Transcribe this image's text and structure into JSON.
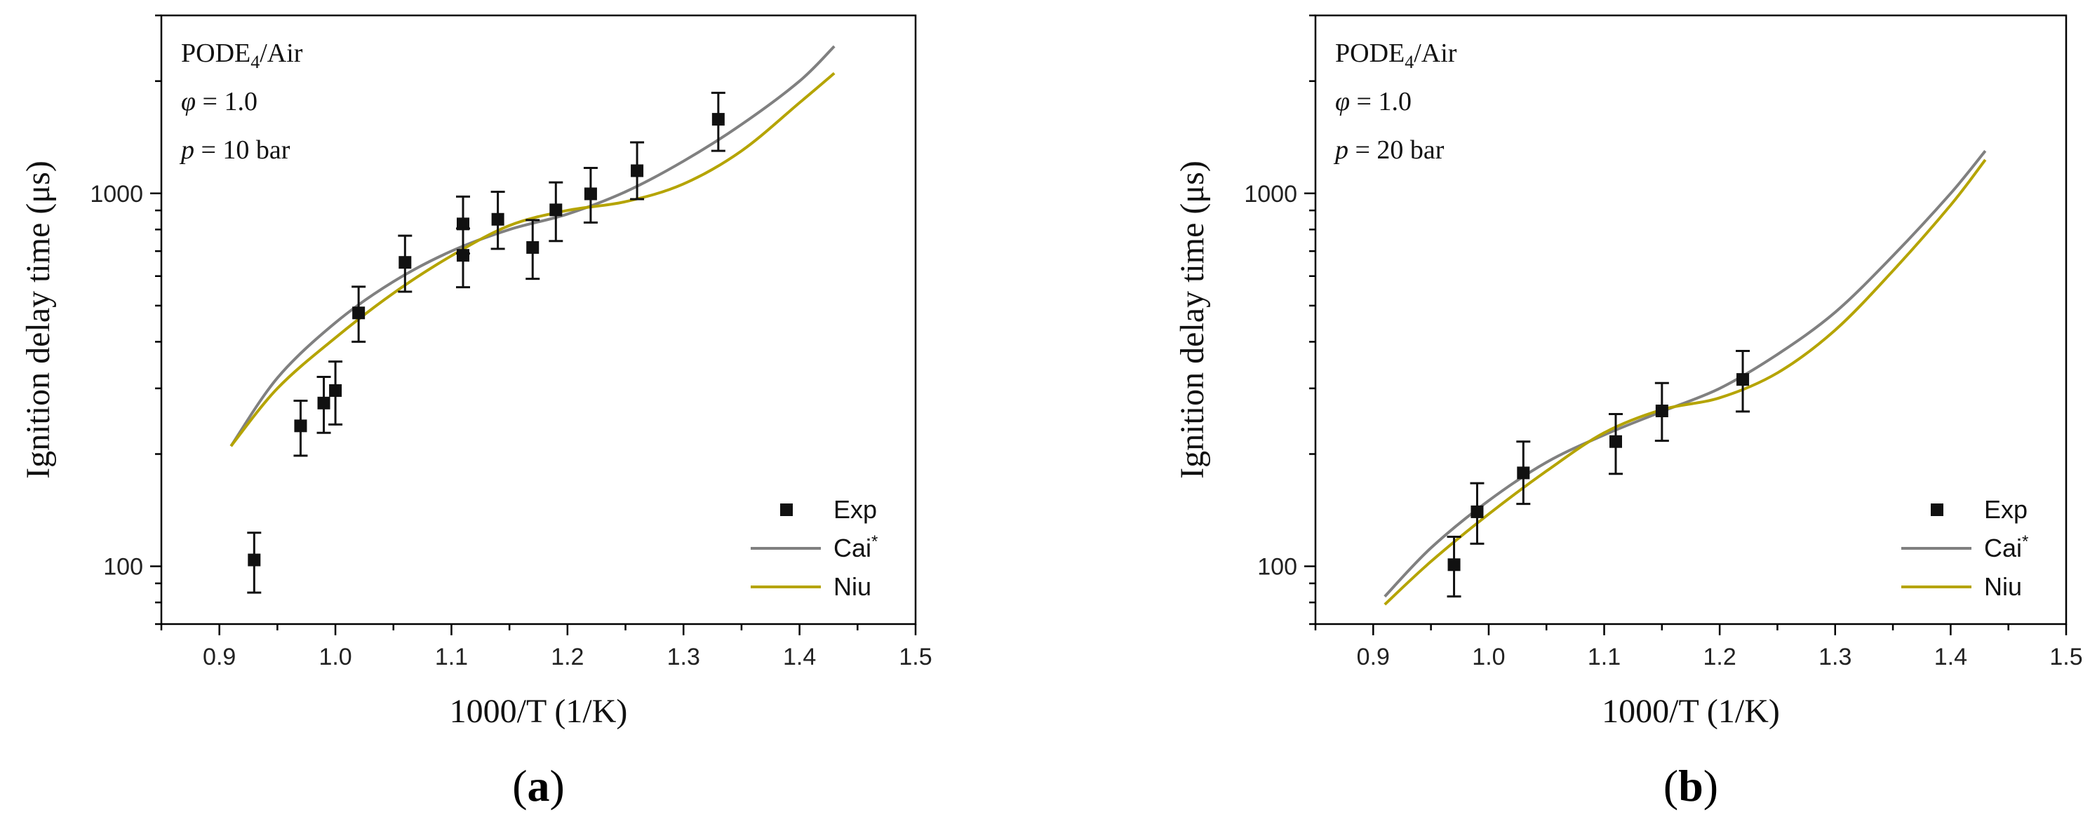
{
  "chart_data": [
    {
      "type": "scatter",
      "panel_label": "a",
      "xlabel": "1000/T (1/K)",
      "ylabel": "Ignition delay time (μs)",
      "xlim": [
        0.85,
        1.5
      ],
      "ylim": [
        70,
        3000
      ],
      "yscale": "log",
      "xticks": [
        "0.9",
        "1.0",
        "1.1",
        "1.2",
        "1.3",
        "1.4",
        "1.5"
      ],
      "yticks": [
        "100",
        "1000"
      ],
      "annotation": {
        "mixture_base": "PODE",
        "mixture_sub": "4",
        "mixture_rest": "/Air",
        "phi_symbol": "φ",
        "phi_value": " = 1.0",
        "p_symbol": "p",
        "p_value": " = 10 bar"
      },
      "legend": [
        {
          "label": "Exp",
          "sup": "",
          "kind": "marker",
          "color": "#111111"
        },
        {
          "label": "Cai",
          "sup": "*",
          "kind": "line",
          "color": "#808080"
        },
        {
          "label": "Niu",
          "sup": "",
          "kind": "line",
          "color": "#b5a400"
        }
      ],
      "legend_position": "bottom-right",
      "series": [
        {
          "name": "Exp",
          "kind": "scatter",
          "color": "#111111",
          "points": [
            {
              "x": 0.93,
              "y": 104,
              "lo": 85,
              "hi": 123
            },
            {
              "x": 0.97,
              "y": 238,
              "lo": 198,
              "hi": 278
            },
            {
              "x": 0.99,
              "y": 274,
              "lo": 228,
              "hi": 322
            },
            {
              "x": 1.0,
              "y": 296,
              "lo": 240,
              "hi": 354
            },
            {
              "x": 1.02,
              "y": 478,
              "lo": 400,
              "hi": 562
            },
            {
              "x": 1.06,
              "y": 653,
              "lo": 545,
              "hi": 770
            },
            {
              "x": 1.11,
              "y": 828,
              "lo": 690,
              "hi": 980
            },
            {
              "x": 1.11,
              "y": 682,
              "lo": 560,
              "hi": 805
            },
            {
              "x": 1.14,
              "y": 852,
              "lo": 710,
              "hi": 1010
            },
            {
              "x": 1.17,
              "y": 716,
              "lo": 590,
              "hi": 848
            },
            {
              "x": 1.19,
              "y": 903,
              "lo": 745,
              "hi": 1070
            },
            {
              "x": 1.22,
              "y": 997,
              "lo": 835,
              "hi": 1170
            },
            {
              "x": 1.26,
              "y": 1150,
              "lo": 965,
              "hi": 1370
            },
            {
              "x": 1.33,
              "y": 1580,
              "lo": 1300,
              "hi": 1860
            }
          ]
        },
        {
          "name": "Cai*",
          "kind": "line",
          "color": "#808080",
          "x": [
            0.91,
            0.95,
            1.0,
            1.05,
            1.1,
            1.15,
            1.2,
            1.25,
            1.3,
            1.35,
            1.4,
            1.43
          ],
          "y": [
            210,
            320,
            450,
            580,
            700,
            800,
            880,
            1010,
            1220,
            1530,
            2000,
            2480
          ]
        },
        {
          "name": "Niu",
          "kind": "line",
          "color": "#b5a400",
          "x": [
            0.91,
            0.95,
            1.0,
            1.05,
            1.1,
            1.15,
            1.2,
            1.25,
            1.3,
            1.35,
            1.4,
            1.43
          ],
          "y": [
            210,
            300,
            410,
            540,
            680,
            820,
            900,
            950,
            1060,
            1300,
            1750,
            2100
          ]
        }
      ]
    },
    {
      "type": "scatter",
      "panel_label": "b",
      "xlabel": "1000/T (1/K)",
      "ylabel": "Ignition delay time (μs)",
      "xlim": [
        0.85,
        1.5
      ],
      "ylim": [
        70,
        3000
      ],
      "yscale": "log",
      "xticks": [
        "0.9",
        "1.0",
        "1.1",
        "1.2",
        "1.3",
        "1.4",
        "1.5"
      ],
      "yticks": [
        "100",
        "1000"
      ],
      "annotation": {
        "mixture_base": "PODE",
        "mixture_sub": "4",
        "mixture_rest": "/Air",
        "phi_symbol": "φ",
        "phi_value": " = 1.0",
        "p_symbol": "p",
        "p_value": " = 20 bar"
      },
      "legend": [
        {
          "label": "Exp",
          "sup": "",
          "kind": "marker",
          "color": "#111111"
        },
        {
          "label": "Cai",
          "sup": "*",
          "kind": "line",
          "color": "#808080"
        },
        {
          "label": "Niu",
          "sup": "",
          "kind": "line",
          "color": "#b5a400"
        }
      ],
      "legend_position": "bottom-right",
      "series": [
        {
          "name": "Exp",
          "kind": "scatter",
          "color": "#111111",
          "points": [
            {
              "x": 0.97,
              "y": 101,
              "lo": 83,
              "hi": 120
            },
            {
              "x": 0.99,
              "y": 140,
              "lo": 115,
              "hi": 167
            },
            {
              "x": 1.03,
              "y": 178,
              "lo": 147,
              "hi": 216
            },
            {
              "x": 1.11,
              "y": 216,
              "lo": 177,
              "hi": 256
            },
            {
              "x": 1.15,
              "y": 261,
              "lo": 217,
              "hi": 310
            },
            {
              "x": 1.22,
              "y": 317,
              "lo": 260,
              "hi": 378
            }
          ]
        },
        {
          "name": "Cai*",
          "kind": "line",
          "color": "#808080",
          "x": [
            0.91,
            0.95,
            1.0,
            1.05,
            1.1,
            1.15,
            1.2,
            1.25,
            1.3,
            1.35,
            1.4,
            1.43
          ],
          "y": [
            83,
            112,
            150,
            190,
            225,
            260,
            300,
            370,
            480,
            680,
            1000,
            1300
          ]
        },
        {
          "name": "Niu",
          "kind": "line",
          "color": "#b5a400",
          "x": [
            0.91,
            0.95,
            1.0,
            1.05,
            1.1,
            1.15,
            1.2,
            1.25,
            1.3,
            1.35,
            1.4,
            1.43
          ],
          "y": [
            79,
            103,
            138,
            180,
            228,
            263,
            283,
            330,
            430,
            620,
            930,
            1230
          ]
        }
      ]
    }
  ]
}
